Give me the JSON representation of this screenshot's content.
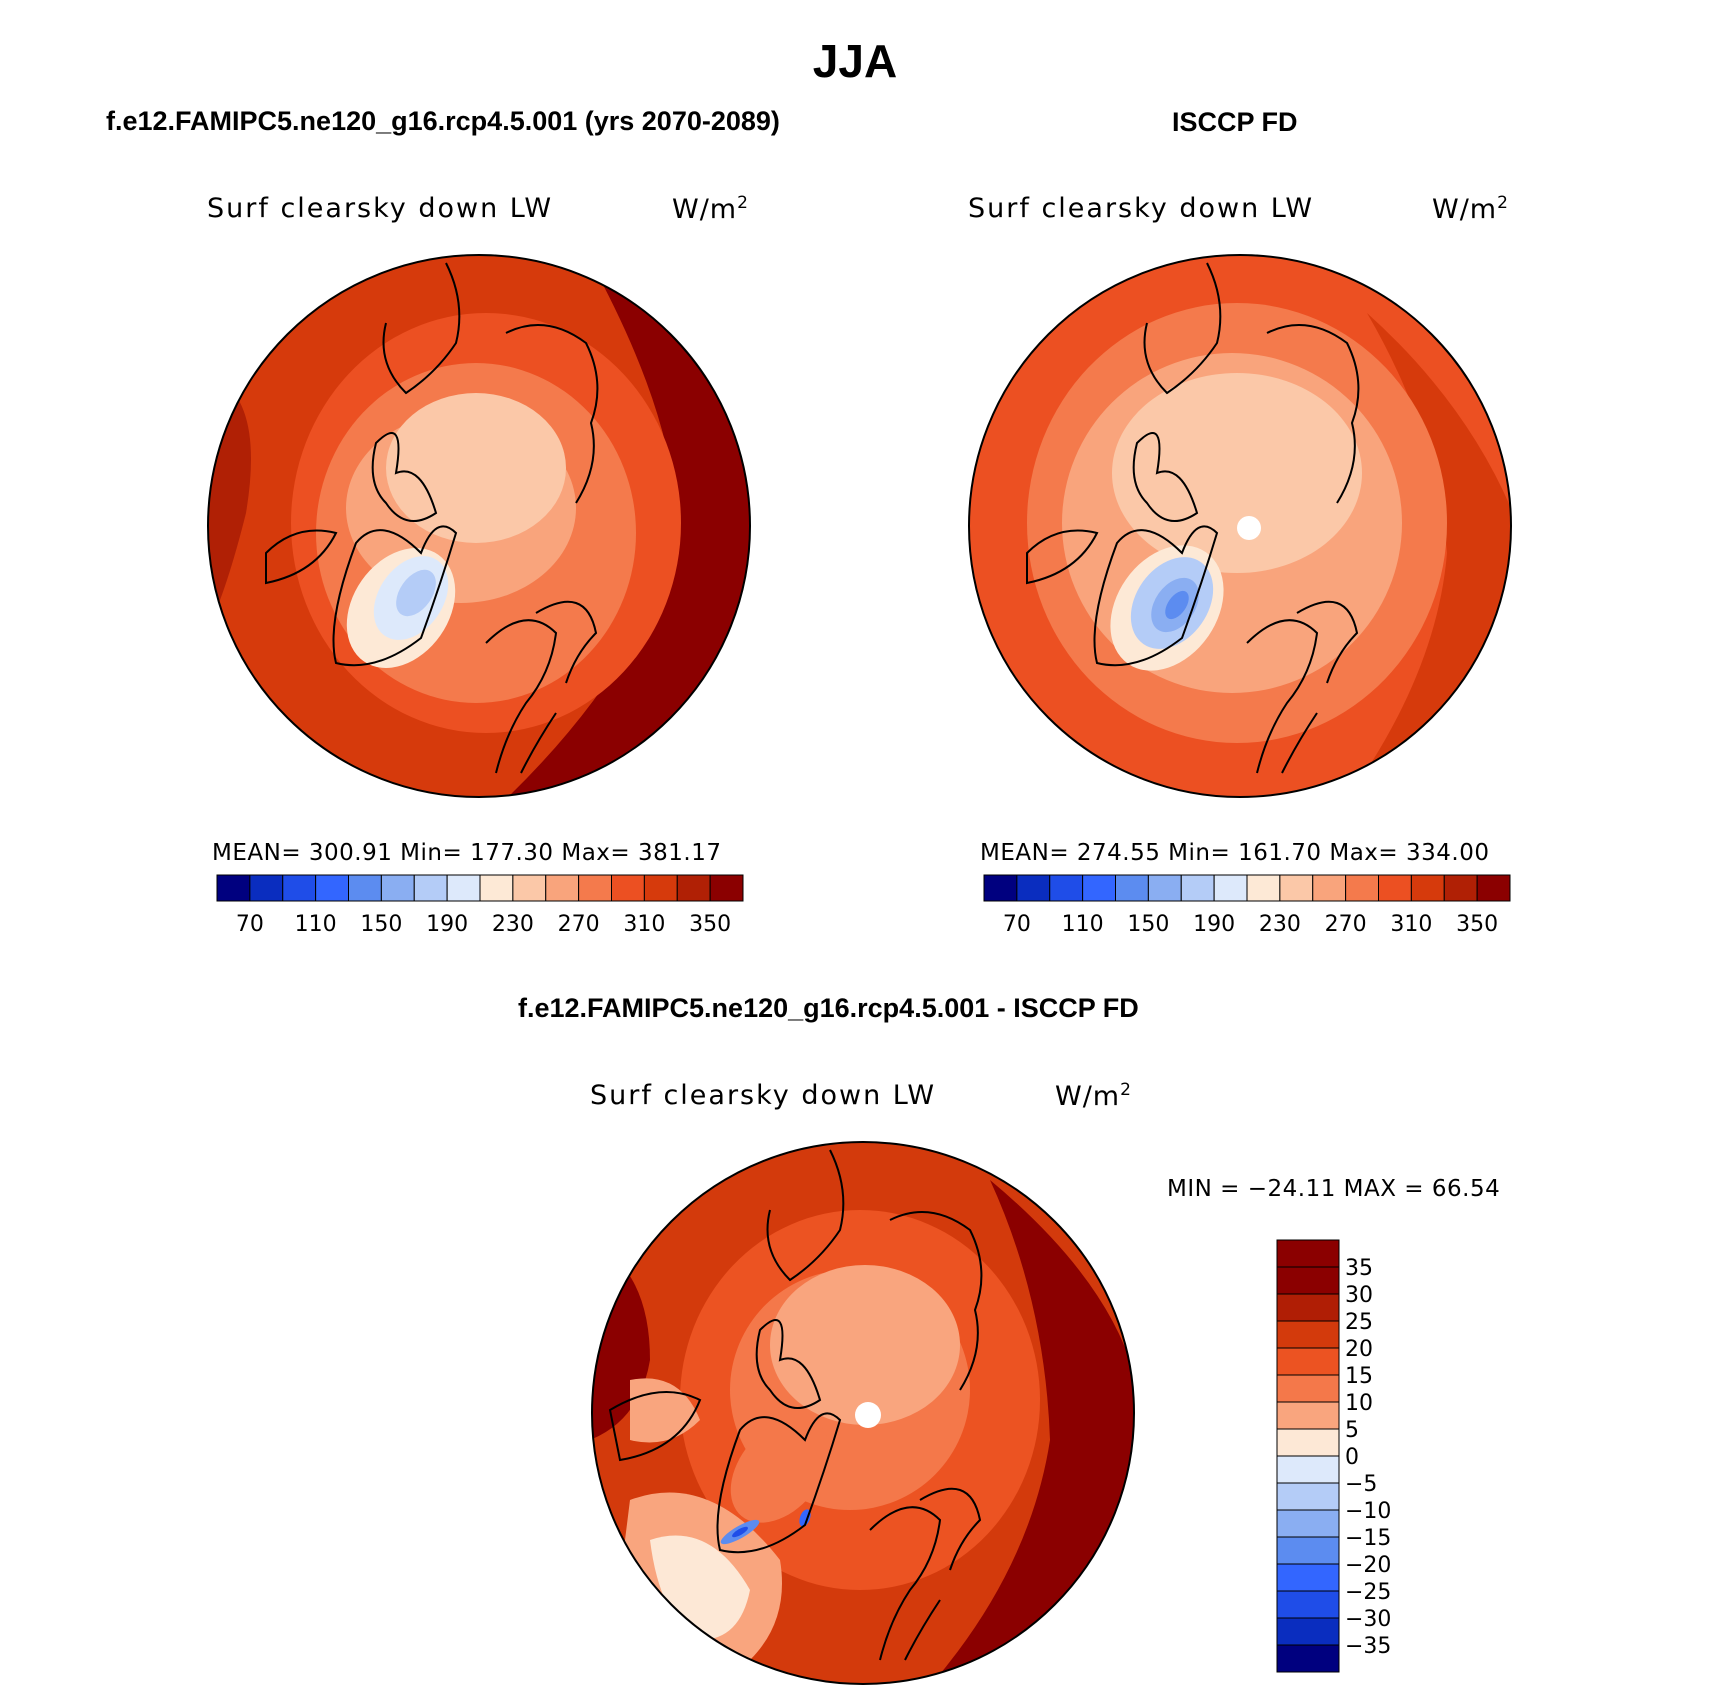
{
  "figure": {
    "title": "JJA"
  },
  "panels": [
    {
      "title": "f.e12.FAMIPC5.ne120_g16.rcp4.5.001 (yrs 2070-2089)",
      "var_label": "Surf clearsky down LW",
      "units": "W/m",
      "units_sup": "2",
      "stats": {
        "mean": "300.91",
        "min": "177.30",
        "max": "381.17"
      },
      "stats_text": "MEAN= 300.91   Min= 177.30   Max= 381.17",
      "colorbar_labels": [
        "70",
        "110",
        "150",
        "190",
        "230",
        "270",
        "310",
        "350"
      ]
    },
    {
      "title": "ISCCP FD",
      "var_label": "Surf clearsky down LW",
      "units": "W/m",
      "units_sup": "2",
      "stats": {
        "mean": "274.55",
        "min": "161.70",
        "max": "334.00"
      },
      "stats_text": "MEAN= 274.55   Min= 161.70   Max= 334.00",
      "colorbar_labels": [
        "70",
        "110",
        "150",
        "190",
        "230",
        "270",
        "310",
        "350"
      ]
    },
    {
      "title": "f.e12.FAMIPC5.ne120_g16.rcp4.5.001 - ISCCP FD",
      "var_label": "Surf clearsky down LW",
      "units": "W/m",
      "units_sup": "2",
      "stats": {
        "min": "-24.11",
        "max": "66.54"
      },
      "stats_text": "MIN = −24.11 MAX =   66.54",
      "colorbar_labels": [
        "35",
        "30",
        "25",
        "20",
        "15",
        "10",
        "5",
        "0",
        "−5",
        "−10",
        "−15",
        "−20",
        "−25",
        "−30",
        "−35"
      ]
    }
  ],
  "colors": {
    "abs_scale": [
      "#00007f",
      "#0a2dbf",
      "#1f4de8",
      "#3366ff",
      "#5c8cf0",
      "#8aaef2",
      "#b4ccf7",
      "#dde9fb",
      "#fde9d6",
      "#fbc8a8",
      "#f9a47c",
      "#f47a4c",
      "#ec5022",
      "#d63a0c",
      "#b02005",
      "#8b0000"
    ],
    "diff_scale": [
      "#8b0000",
      "#b01e05",
      "#d33a0c",
      "#ec5322",
      "#f4784a",
      "#f9a57e",
      "#fde8d6",
      "#dde9fb",
      "#b4ccf7",
      "#8aaef2",
      "#5c8cf0",
      "#3366ff",
      "#1f4de8",
      "#0a2dbf",
      "#00007f"
    ],
    "land_outline": "#000000"
  }
}
